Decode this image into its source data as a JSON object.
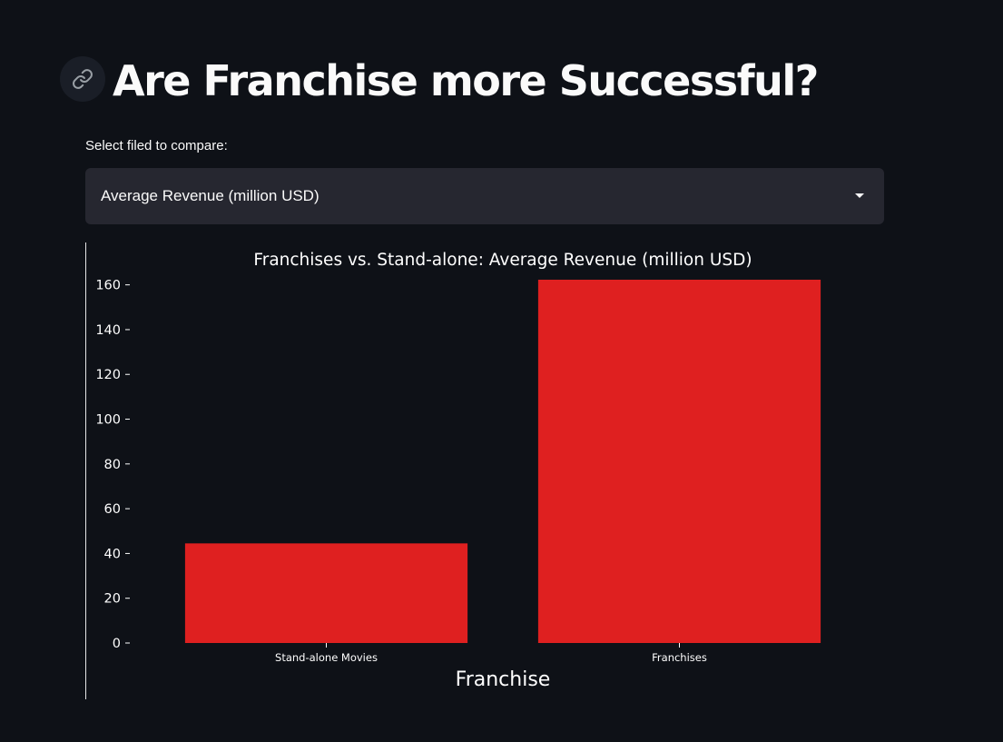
{
  "header": {
    "title": "Are Franchise more Successful?",
    "anchor_icon": "link-icon"
  },
  "controls": {
    "select_label": "Select filed to compare:",
    "selected_value": "Average Revenue (million USD)"
  },
  "colors": {
    "background": "#0e1117",
    "select_bg": "#262730",
    "bar": "#df2020"
  },
  "chart_data": {
    "type": "bar",
    "title": "Franchises vs. Stand-alone: Average Revenue (million USD)",
    "xlabel": "Franchise",
    "ylabel": "",
    "categories": [
      "Stand-alone Movies",
      "Franchises"
    ],
    "values": [
      44.5,
      162.3
    ],
    "ylim": [
      0,
      170
    ],
    "yticks": [
      0,
      20,
      40,
      60,
      80,
      100,
      120,
      140,
      160
    ],
    "grid": false,
    "legend": "none"
  }
}
